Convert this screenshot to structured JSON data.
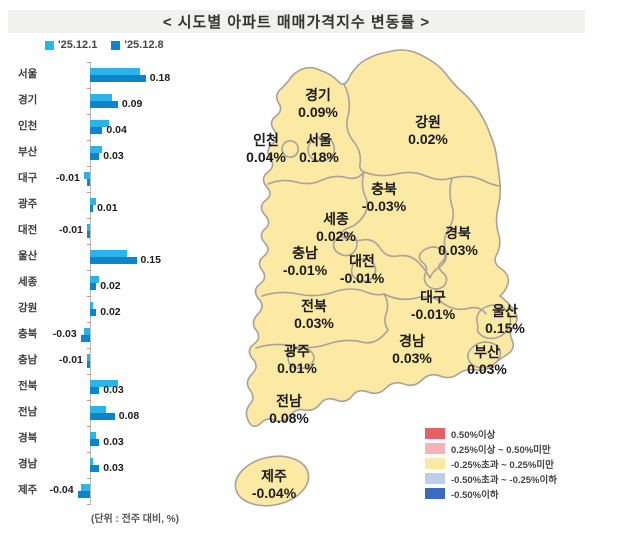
{
  "title": "< 시도별 아파트 매매가격지수 변동률 >",
  "unit_note": "(단위 : 전주 대비, %)",
  "chart_data": {
    "type": "bar",
    "orientation": "horizontal",
    "title": "시도별 아파트 매매가격지수 변동률",
    "unit": "전주 대비, %",
    "categories": [
      "서울",
      "경기",
      "인천",
      "부산",
      "대구",
      "광주",
      "대전",
      "울산",
      "세종",
      "강원",
      "충북",
      "충남",
      "전북",
      "전남",
      "경북",
      "경남",
      "제주"
    ],
    "series": [
      {
        "name": "'25.12.1",
        "color": "#2ab4e8",
        "values": [
          0.16,
          0.07,
          0.06,
          0.04,
          -0.02,
          0.02,
          -0.01,
          0.12,
          0.03,
          0.01,
          -0.02,
          -0.01,
          0.09,
          0.05,
          0.02,
          0.01,
          -0.03
        ]
      },
      {
        "name": "'25.12.8",
        "color": "#0e84cb",
        "values": [
          0.18,
          0.09,
          0.04,
          0.03,
          -0.01,
          0.01,
          -0.01,
          0.15,
          0.02,
          0.02,
          -0.03,
          -0.01,
          0.03,
          0.08,
          0.03,
          0.03,
          -0.04
        ]
      }
    ],
    "value_labels": [
      "0.18",
      "0.09",
      "0.04",
      "0.03",
      "-0.01",
      "0.01",
      "-0.01",
      "0.15",
      "0.02",
      "0.02",
      "-0.03",
      "-0.01",
      "0.03",
      "0.08",
      "0.03",
      "0.03",
      "-0.04"
    ],
    "xlim": [
      -0.06,
      0.2
    ],
    "grid": false,
    "legend_position": "top-left"
  },
  "map": {
    "fill_color": "#fbe9a4",
    "border_color": "#a9a29a",
    "regions": [
      {
        "key": "gyeonggi",
        "name": "경기",
        "value": "0.09%"
      },
      {
        "key": "gangwon",
        "name": "강원",
        "value": "0.02%"
      },
      {
        "key": "incheon",
        "name": "인천",
        "value": "0.04%"
      },
      {
        "key": "seoul",
        "name": "서울",
        "value": "0.18%"
      },
      {
        "key": "chungbuk",
        "name": "충북",
        "value": "-0.03%"
      },
      {
        "key": "sejong",
        "name": "세종",
        "value": "0.02%"
      },
      {
        "key": "chungnam",
        "name": "충남",
        "value": "-0.01%"
      },
      {
        "key": "daejeon",
        "name": "대전",
        "value": "-0.01%"
      },
      {
        "key": "gyeongbuk",
        "name": "경북",
        "value": "0.03%"
      },
      {
        "key": "jeonbuk",
        "name": "전북",
        "value": "0.03%"
      },
      {
        "key": "daegu",
        "name": "대구",
        "value": "-0.01%"
      },
      {
        "key": "ulsan",
        "name": "울산",
        "value": "0.15%"
      },
      {
        "key": "gwangju",
        "name": "광주",
        "value": "0.01%"
      },
      {
        "key": "gyeongnam",
        "name": "경남",
        "value": "0.03%"
      },
      {
        "key": "busan",
        "name": "부산",
        "value": "0.03%"
      },
      {
        "key": "jeonnam",
        "name": "전남",
        "value": "0.08%"
      },
      {
        "key": "jeju",
        "name": "제주",
        "value": "-0.04%"
      }
    ],
    "legend": [
      {
        "color": "#e85f66",
        "label": "0.50%이상"
      },
      {
        "color": "#f3b3b9",
        "label": "0.25%이상 ~ 0.50%미만"
      },
      {
        "color": "#fbe9a4",
        "label": "-0.25%초과 ~ 0.25%미만"
      },
      {
        "color": "#bfcde8",
        "label": "-0.50%초과 ~ -0.25%이하"
      },
      {
        "color": "#3a6cc0",
        "label": "-0.50%이하"
      }
    ]
  }
}
